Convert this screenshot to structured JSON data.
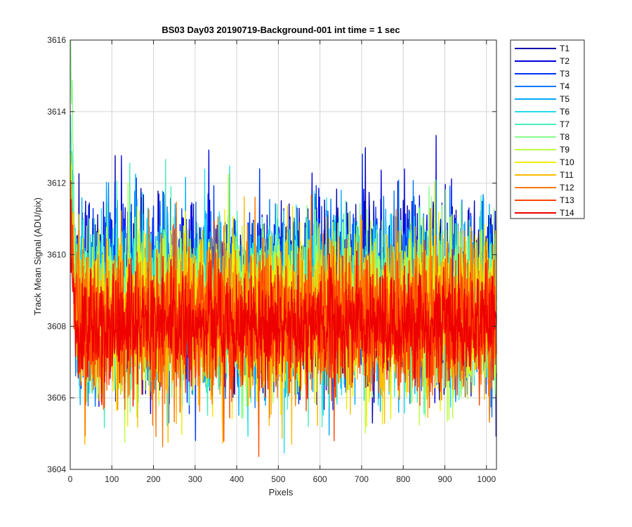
{
  "chart_data": {
    "type": "line",
    "title": "BS03 Day03 20190719-Background-001 int time = 1 sec",
    "xlabel": "Pixels",
    "ylabel": "Track Mean Signal (ADU/pix)",
    "xlim": [
      0,
      1024
    ],
    "ylim": [
      3604,
      3616
    ],
    "xticks": [
      "0",
      "100",
      "200",
      "300",
      "400",
      "500",
      "600",
      "700",
      "800",
      "900",
      "1000"
    ],
    "yticks": [
      "3604",
      "3606",
      "3608",
      "3610",
      "3612",
      "3614",
      "3616"
    ],
    "grid": true,
    "legend_position": "outside-right-top",
    "num_points": 1024,
    "series": [
      {
        "name": "T1",
        "color": "#0000AA",
        "mean": 3609.0,
        "spread": 1.25,
        "start": 3612.6
      },
      {
        "name": "T2",
        "color": "#0000DD",
        "mean": 3608.95,
        "spread": 1.2,
        "start": 3612.8
      },
      {
        "name": "T3",
        "color": "#0033FF",
        "mean": 3608.9,
        "spread": 1.2,
        "start": 3612.4
      },
      {
        "name": "T4",
        "color": "#0077FF",
        "mean": 3608.8,
        "spread": 1.2,
        "start": 3611.8
      },
      {
        "name": "T5",
        "color": "#00AAFF",
        "mean": 3608.7,
        "spread": 1.2,
        "start": 3612.2
      },
      {
        "name": "T6",
        "color": "#22DDEE",
        "mean": 3608.6,
        "spread": 1.15,
        "start": 3613.0
      },
      {
        "name": "T7",
        "color": "#44EEBB",
        "mean": 3608.5,
        "spread": 1.15,
        "start": 3613.5
      },
      {
        "name": "T8",
        "color": "#88FF88",
        "mean": 3608.45,
        "spread": 1.15,
        "start": 3616.0
      },
      {
        "name": "T9",
        "color": "#BBFF44",
        "mean": 3608.4,
        "spread": 1.15,
        "start": 3612.5
      },
      {
        "name": "T10",
        "color": "#EEEE00",
        "mean": 3608.3,
        "spread": 1.1,
        "start": 3612.0
      },
      {
        "name": "T11",
        "color": "#FFBB00",
        "mean": 3608.2,
        "spread": 1.1,
        "start": 3611.5
      },
      {
        "name": "T12",
        "color": "#FF7700",
        "mean": 3608.15,
        "spread": 1.05,
        "start": 3611.0
      },
      {
        "name": "T13",
        "color": "#FF4400",
        "mean": 3608.1,
        "spread": 1.0,
        "start": 3610.8
      },
      {
        "name": "T14",
        "color": "#EE0000",
        "mean": 3608.05,
        "spread": 0.75,
        "start": 3610.5
      }
    ]
  }
}
